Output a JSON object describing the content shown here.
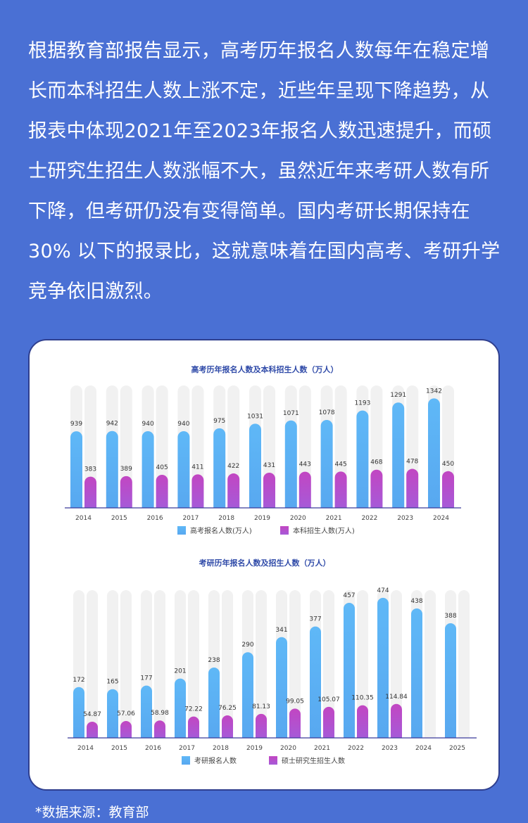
{
  "intro_text": "根据教育部报告显示，高考历年报名人数每年在稳定增长而本科招生人数上涨不定，近些年呈现下降趋势，从报表中体现2021年至2023年报名人数迅速提升，而硕士研究生招生人数涨幅不大，虽然近年来考研人数有所下降，但考研仍没有变得简单。国内考研长期保持在 30% 以下的报录比，这就意味着在国内高考、考研升学竞争依旧激烈。",
  "source_note": "*数据来源：教育部",
  "colors": {
    "blue": "#5ab4f5",
    "purple": "#b444c4",
    "track": "#f1f1f1",
    "axis": "#3b3b9a"
  },
  "chart_data": [
    {
      "type": "bar",
      "title": "高考历年报名人数及本科招生人数（万人）",
      "categories": [
        "2014",
        "2015",
        "2016",
        "2017",
        "2018",
        "2019",
        "2020",
        "2021",
        "2022",
        "2023",
        "2024"
      ],
      "series": [
        {
          "name": "高考报名人数(万人)",
          "values": [
            939,
            942,
            940,
            940,
            975,
            1031,
            1071,
            1078,
            1193,
            1291,
            1342
          ]
        },
        {
          "name": "本科招生人数(万人)",
          "values": [
            383,
            389,
            405,
            411,
            422,
            431,
            443,
            445,
            468,
            478,
            450
          ]
        }
      ],
      "ylim": [
        0,
        1500
      ]
    },
    {
      "type": "bar",
      "title": "考研历年报名人数及招生人数（万人）",
      "categories": [
        "2014",
        "2015",
        "2016",
        "2017",
        "2018",
        "2019",
        "2020",
        "2021",
        "2022",
        "2023",
        "2024",
        "2025"
      ],
      "series": [
        {
          "name": "考研报名人数",
          "values": [
            172,
            165,
            177,
            201,
            238,
            290,
            341,
            377,
            457,
            474,
            438,
            388
          ]
        },
        {
          "name": "硕士研究生招生人数",
          "values": [
            54.87,
            57.06,
            58.98,
            72.22,
            76.25,
            81.13,
            99.05,
            105.07,
            110.35,
            114.84,
            null,
            null
          ]
        }
      ],
      "ylim": [
        0,
        500
      ]
    }
  ]
}
